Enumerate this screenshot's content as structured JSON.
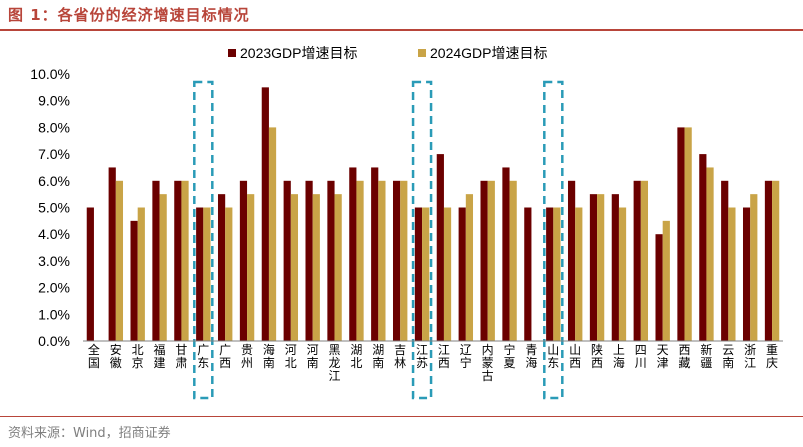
{
  "header": {
    "title": "图 1：各省份的经济增速目标情况"
  },
  "footer": {
    "source": "资料来源：Wind，招商证券"
  },
  "colors": {
    "series_2023": "#6b0000",
    "series_2024": "#c9a447",
    "highlight": "#2a9bb7",
    "accent": "#b8453a"
  },
  "chart_data": {
    "type": "bar",
    "title": "",
    "xlabel": "",
    "ylabel": "",
    "ylim": [
      0,
      10
    ],
    "yticks": [
      "0.0%",
      "1.0%",
      "2.0%",
      "3.0%",
      "4.0%",
      "5.0%",
      "6.0%",
      "7.0%",
      "8.0%",
      "9.0%",
      "10.0%"
    ],
    "legend_position": "top-center",
    "grid": false,
    "categories": [
      "全国",
      "安徽",
      "北京",
      "福建",
      "甘肃",
      "广东",
      "广西",
      "贵州",
      "海南",
      "河北",
      "河南",
      "黑龙江",
      "湖北",
      "湖南",
      "吉林",
      "江苏",
      "江西",
      "辽宁",
      "内蒙古",
      "宁夏",
      "青海",
      "山东",
      "山西",
      "陕西",
      "上海",
      "四川",
      "天津",
      "西藏",
      "新疆",
      "云南",
      "浙江",
      "重庆"
    ],
    "series": [
      {
        "name": "2023GDP增速目标",
        "values": [
          5.0,
          6.5,
          4.5,
          6.0,
          6.0,
          5.0,
          5.5,
          6.0,
          9.5,
          6.0,
          6.0,
          6.0,
          6.5,
          6.5,
          6.0,
          5.0,
          7.0,
          5.0,
          6.0,
          6.5,
          5.0,
          5.0,
          6.0,
          5.5,
          5.5,
          6.0,
          4.0,
          8.0,
          7.0,
          6.0,
          5.0,
          6.0
        ]
      },
      {
        "name": "2024GDP增速目标",
        "values": [
          null,
          6.0,
          5.0,
          5.5,
          6.0,
          5.0,
          5.0,
          5.5,
          8.0,
          5.5,
          5.5,
          5.5,
          6.0,
          6.0,
          6.0,
          5.0,
          5.0,
          5.5,
          6.0,
          6.0,
          null,
          5.0,
          5.0,
          5.5,
          5.0,
          6.0,
          4.5,
          8.0,
          6.5,
          5.0,
          5.5,
          6.0
        ]
      }
    ],
    "highlighted_categories": [
      "广东",
      "江苏",
      "山东"
    ]
  }
}
